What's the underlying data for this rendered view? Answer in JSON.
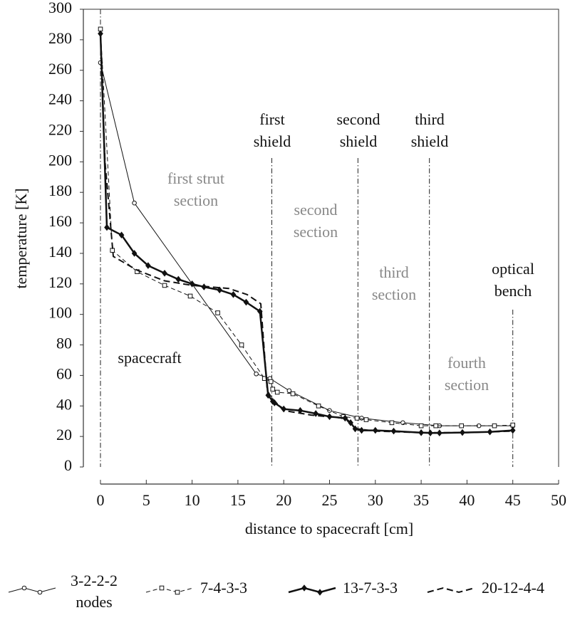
{
  "chart_data": {
    "type": "line",
    "xlabel": "distance to spacecraft [cm]",
    "ylabel": "temperature [K]",
    "xlim": [
      0,
      50
    ],
    "ylim": [
      0,
      300
    ],
    "xticks": [
      0,
      5,
      10,
      15,
      20,
      25,
      30,
      35,
      40,
      45,
      50
    ],
    "yticks": [
      0,
      20,
      40,
      60,
      80,
      100,
      120,
      140,
      160,
      180,
      200,
      220,
      240,
      260,
      280,
      300
    ],
    "vlines": [
      0,
      18.7,
      28.1,
      35.9,
      45
    ],
    "annotations": [
      {
        "text": [
          "spacecraft"
        ],
        "color": "#111111"
      },
      {
        "text": [
          "first",
          "shield"
        ],
        "color": "#111111"
      },
      {
        "text": [
          "second",
          "shield"
        ],
        "color": "#111111"
      },
      {
        "text": [
          "third",
          "shield"
        ],
        "color": "#111111"
      },
      {
        "text": [
          "optical",
          "bench"
        ],
        "color": "#111111"
      },
      {
        "text": [
          "first strut",
          "section"
        ],
        "color": "#888888"
      },
      {
        "text": [
          "second",
          "section"
        ],
        "color": "#888888"
      },
      {
        "text": [
          "third",
          "section"
        ],
        "color": "#888888"
      },
      {
        "text": [
          "fourth",
          "section"
        ],
        "color": "#888888"
      }
    ],
    "series": [
      {
        "name": [
          "3-2-2-2",
          "nodes"
        ],
        "color": "#111111",
        "line_width": 1,
        "dash": "solid",
        "marker": "circle",
        "x": [
          0,
          3.7,
          17,
          18.5,
          20.6,
          25,
          28.5,
          33,
          37,
          41.3,
          45
        ],
        "values": [
          265,
          173,
          61,
          58,
          50,
          37,
          32,
          29,
          27,
          27,
          27
        ]
      },
      {
        "name": "7-4-3-3",
        "color": "#111111",
        "line_width": 1,
        "dash": "dashed",
        "marker": "square",
        "x": [
          0,
          1.3,
          4,
          7,
          9.8,
          12.8,
          15.4,
          17.9,
          18.6,
          18.8,
          19.3,
          21,
          23.8,
          26.5,
          28,
          29,
          31.8,
          35,
          36.6,
          39.4,
          43,
          45
        ],
        "values": [
          287,
          142,
          128,
          119,
          112,
          101,
          80,
          58,
          56,
          51,
          49,
          48,
          40,
          33,
          32,
          31,
          29,
          27,
          27,
          27,
          27,
          27.5
        ]
      },
      {
        "name": "13-7-3-3",
        "color": "#111111",
        "line_width": 2.5,
        "dash": "solid",
        "marker": "diamond",
        "x": [
          0,
          0.7,
          2.3,
          3.7,
          5.2,
          7,
          8.5,
          10,
          11.3,
          13,
          14.5,
          15.9,
          17.4,
          18.3,
          18.8,
          19,
          20,
          21.8,
          23.5,
          25,
          26.7,
          27.3,
          27.8,
          28.5,
          30,
          32,
          35,
          36,
          37,
          39.5,
          42.5,
          45
        ],
        "values": [
          284,
          157,
          152,
          140,
          132,
          127,
          123,
          120,
          118,
          116,
          113,
          108,
          102,
          47,
          43,
          42,
          38,
          37,
          35,
          33,
          32,
          29,
          25,
          24,
          24,
          23.5,
          22.5,
          22.3,
          22.3,
          22.6,
          23,
          24
        ]
      },
      {
        "name": "20-12-4-4",
        "color": "#111111",
        "line_width": 2,
        "dash": "dashed",
        "marker": "none",
        "x": [
          0,
          0.5,
          1.4,
          4,
          7,
          10,
          14,
          16,
          17.5,
          18.2,
          18.7,
          20,
          23,
          26.5,
          27.5,
          28,
          30,
          35,
          40,
          45
        ],
        "values": [
          284,
          200,
          138,
          129,
          122,
          119,
          117,
          113,
          107,
          50,
          45,
          37,
          34,
          32,
          28,
          25,
          23.5,
          22.5,
          22.5,
          23.5
        ]
      }
    ]
  }
}
